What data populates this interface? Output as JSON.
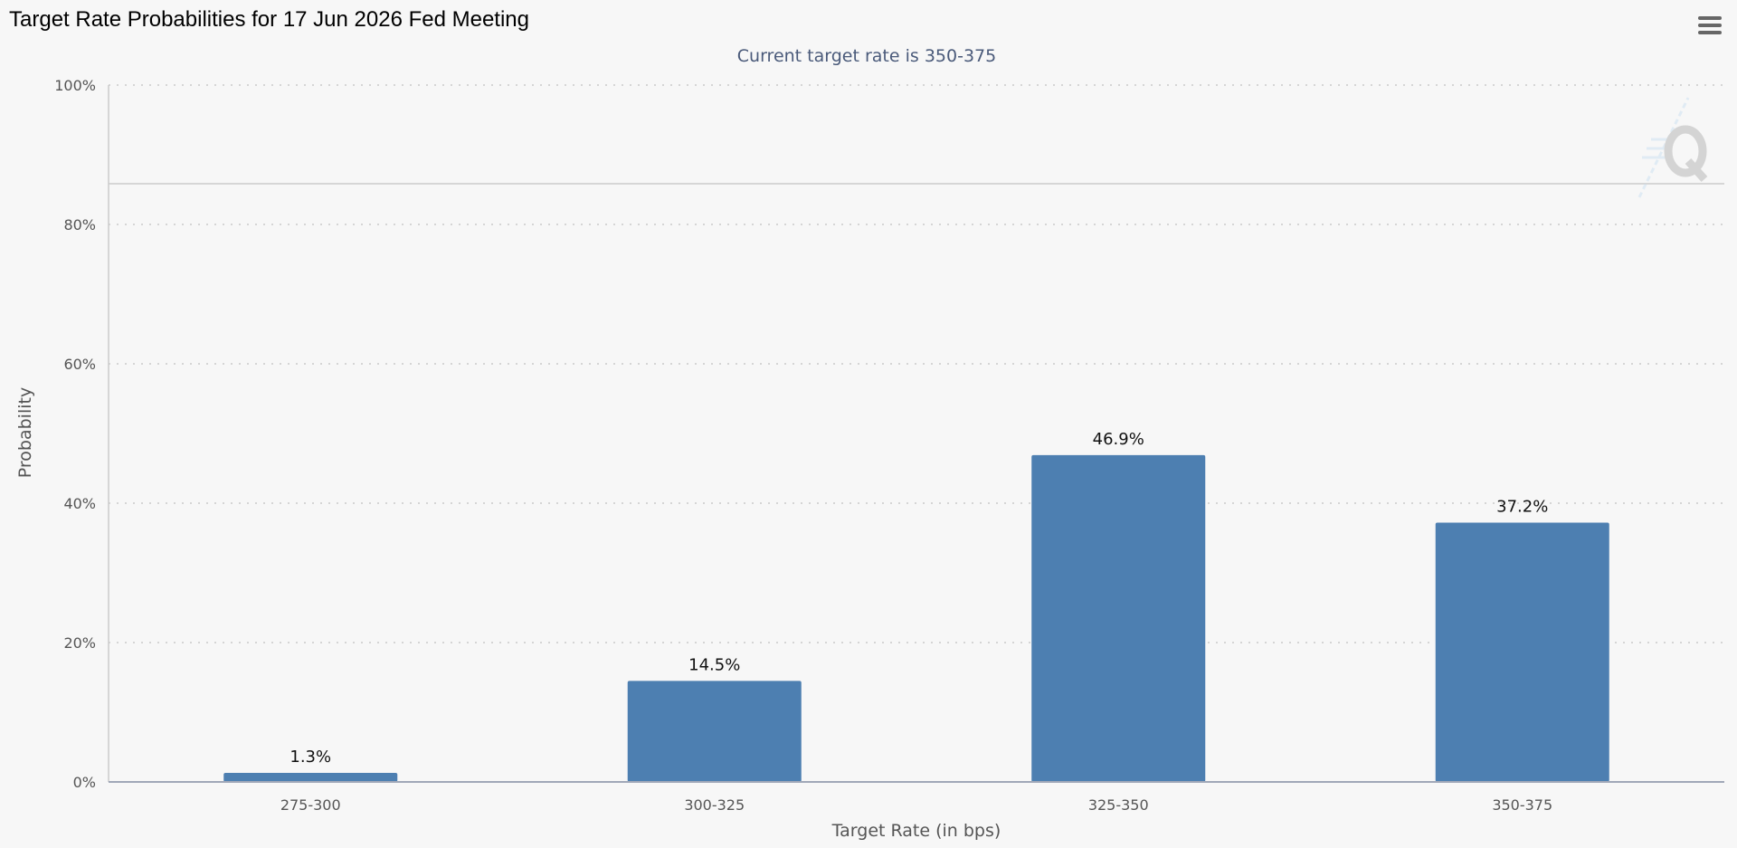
{
  "page": {
    "title": "Target Rate Probabilities for 17 Jun 2026 Fed Meeting",
    "menu_icon": "hamburger-menu-icon",
    "watermark_icon": "q-logo-watermark-icon"
  },
  "chart_data": {
    "type": "bar",
    "subtitle": "Current target rate is 350-375",
    "xlabel": "Target Rate (in bps)",
    "ylabel": "Probability",
    "categories": [
      "275-300",
      "300-325",
      "325-350",
      "350-375"
    ],
    "values": [
      1.3,
      14.5,
      46.9,
      37.2
    ],
    "data_labels": [
      "1.3%",
      "14.5%",
      "46.9%",
      "37.2%"
    ],
    "ylim": [
      0,
      100
    ],
    "yticks": [
      0,
      20,
      40,
      60,
      80,
      100
    ],
    "ytick_labels": [
      "0%",
      "20%",
      "40%",
      "60%",
      "80%",
      "100%"
    ],
    "grid": true,
    "colors": {
      "bar": "#4d7fb1",
      "background": "#f7f7f7",
      "grid": "#d5d5d5",
      "subtitle": "#4a5a7a",
      "axis_text": "#555555"
    }
  }
}
